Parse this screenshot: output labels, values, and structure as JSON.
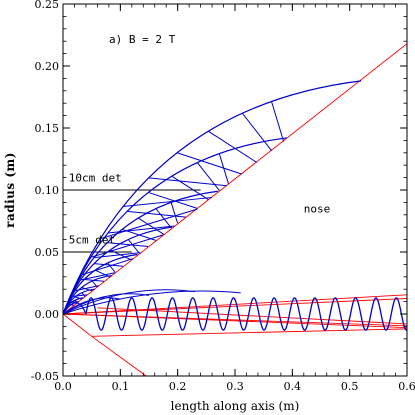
{
  "chart_data": {
    "type": "line",
    "title": "a) B = 2 T",
    "xlabel": "length along axis (m)",
    "ylabel": "radius (m)",
    "xlim": [
      0.0,
      0.6
    ],
    "ylim": [
      -0.05,
      0.25
    ],
    "x_ticks": [
      "0.0",
      "0.1",
      "0.2",
      "0.3",
      "0.4",
      "0.5",
      "0.6"
    ],
    "y_ticks": [
      "-0.05",
      "0.00",
      "0.05",
      "0.10",
      "0.15",
      "0.20",
      "0.25"
    ],
    "grid": false,
    "colors": {
      "boundary": "#ff0000",
      "trajectories": "#0000cc",
      "detector_lines": "#000000"
    },
    "annotations": [
      {
        "text": "10cm det",
        "x": 0.01,
        "y": 0.107
      },
      {
        "text": "5cm det",
        "x": 0.01,
        "y": 0.057
      },
      {
        "text": "nose",
        "x": 0.42,
        "y": 0.082
      }
    ],
    "detector_lines": [
      {
        "label": "10cm det",
        "x": [
          0.0,
          0.24
        ],
        "y": [
          0.1,
          0.1
        ]
      },
      {
        "label": "5cm det",
        "x": [
          0.0,
          0.12
        ],
        "y": [
          0.05,
          0.05
        ]
      }
    ],
    "boundary_lines": [
      {
        "x": [
          0.0,
          0.6
        ],
        "y": [
          0.0,
          0.218
        ]
      },
      {
        "x": [
          0.0,
          0.6
        ],
        "y": [
          0.0,
          0.0125
        ]
      },
      {
        "x": [
          0.0,
          0.6
        ],
        "y": [
          0.0,
          -0.011
        ]
      },
      {
        "x": [
          0.0,
          0.6
        ],
        "y": [
          0.0,
          0.0155
        ]
      },
      {
        "x": [
          0.0,
          0.6
        ],
        "y": [
          0.0,
          -0.0095
        ]
      },
      {
        "x": [
          0.06,
          0.6
        ],
        "y": [
          0.005,
          -0.008
        ]
      },
      {
        "x": [
          0.05,
          0.6
        ],
        "y": [
          -0.018,
          -0.012
        ]
      },
      {
        "x": [
          0.0,
          0.05
        ],
        "y": [
          0.0,
          -0.018
        ]
      },
      {
        "x": [
          0.05,
          0.145
        ],
        "y": [
          -0.018,
          -0.05
        ]
      }
    ],
    "trajectory_families": [
      {
        "apex_x": 0.52,
        "apex_y": 0.188,
        "branches": [
          0.2,
          0.3,
          0.4,
          0.5,
          0.6,
          0.7,
          0.78
        ]
      },
      {
        "apex_x": 0.39,
        "apex_y": 0.142,
        "branches": [
          0.2,
          0.3,
          0.4,
          0.5,
          0.6,
          0.7,
          0.78
        ]
      },
      {
        "apex_x": 0.27,
        "apex_y": 0.099,
        "branches": [
          0.2,
          0.3,
          0.4,
          0.5,
          0.6,
          0.7,
          0.78
        ]
      },
      {
        "apex_x": 0.19,
        "apex_y": 0.07,
        "branches": [
          0.25,
          0.4,
          0.55,
          0.7
        ]
      },
      {
        "apex_x": 0.13,
        "apex_y": 0.048,
        "branches": [
          0.25,
          0.4,
          0.55,
          0.7
        ]
      },
      {
        "apex_x": 0.085,
        "apex_y": 0.031,
        "branches": [
          0.3,
          0.5,
          0.7
        ]
      },
      {
        "apex_x": 0.055,
        "apex_y": 0.02,
        "branches": [
          0.3,
          0.5,
          0.7
        ]
      },
      {
        "apex_x": 0.035,
        "apex_y": 0.013,
        "branches": [
          0.4,
          0.7
        ]
      }
    ],
    "bundle_endpoints": [
      [
        0.31,
        0.017
      ],
      [
        0.23,
        0.018
      ],
      [
        0.15,
        0.015
      ],
      [
        0.1,
        0.012
      ]
    ],
    "helix": {
      "x_start": 0.04,
      "x_end": 0.6,
      "center": 0.0,
      "amplitude": 0.013,
      "period": 0.0355
    }
  }
}
